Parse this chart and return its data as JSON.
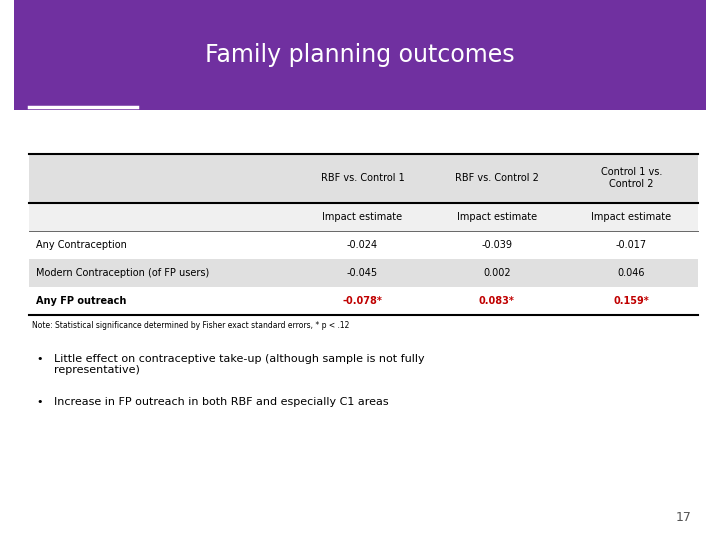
{
  "title": "Family planning outcomes",
  "title_bg_color": "#7030A0",
  "title_text_color": "#FFFFFF",
  "slide_bg_color": "#FFFFFF",
  "underline_color": "#FFFFFF",
  "col_headers": [
    "RBF vs. Control 1",
    "RBF vs. Control 2",
    "Control 1 vs.\nControl 2"
  ],
  "sub_headers": [
    "Impact estimate",
    "Impact estimate",
    "Impact estimate"
  ],
  "rows": [
    {
      "label": "Any Contraception",
      "values": [
        "-0.024",
        "-0.039",
        "-0.017"
      ],
      "colors": [
        "#000000",
        "#000000",
        "#000000"
      ],
      "bold": false,
      "row_bg": "#FFFFFF"
    },
    {
      "label": "Modern Contraception (of FP users)",
      "values": [
        "-0.045",
        "0.002",
        "0.046"
      ],
      "colors": [
        "#000000",
        "#000000",
        "#000000"
      ],
      "bold": false,
      "row_bg": "#E0E0E0"
    },
    {
      "label": "Any FP outreach",
      "values": [
        "-0.078*",
        "0.083*",
        "0.159*"
      ],
      "colors": [
        "#C00000",
        "#C00000",
        "#C00000"
      ],
      "bold": true,
      "row_bg": "#FFFFFF"
    }
  ],
  "note": "Note: Statistical significance determined by Fisher exact standard errors, * p < .12",
  "bullets": [
    "Little effect on contraceptive take-up (although sample is not fully\nrepresentative)",
    "Increase in FP outreach in both RBF and especially C1 areas"
  ],
  "page_number": "17",
  "header_row_bg": "#E0E0E0",
  "subheader_row_bg": "#F0F0F0"
}
